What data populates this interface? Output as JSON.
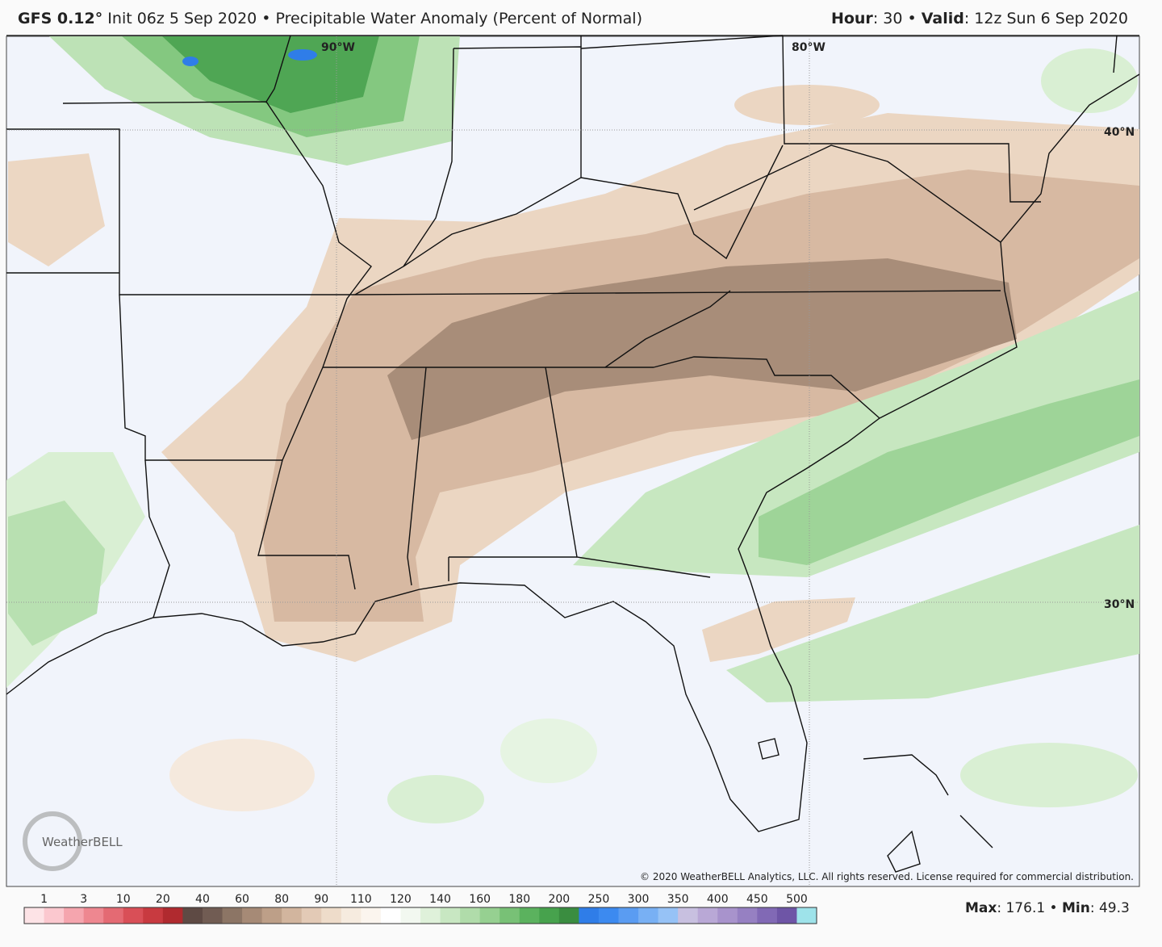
{
  "header": {
    "left": [
      {
        "text": "GFS 0.12°",
        "bold": true
      },
      {
        "text": " Init 06z 5 Sep 2020 • Precipitable Water Anomaly (Percent of Normal)",
        "bold": false
      }
    ],
    "right": [
      {
        "text": "Hour",
        "bold": true
      },
      {
        "text": ": 30 • ",
        "bold": false
      },
      {
        "text": "Valid",
        "bold": true
      },
      {
        "text": ": 12z Sun 6 Sep 2020",
        "bold": false
      }
    ]
  },
  "map": {
    "grid_labels": [
      "90°W",
      "80°W",
      "40°N",
      "30°N"
    ],
    "copyright": "© 2020 WeatherBELL Analytics, LLC. All rights reserved. License required for commercial distribution.",
    "logo": "WeatherBELL"
  },
  "colorbar": {
    "labels": [
      1,
      3,
      10,
      20,
      40,
      60,
      80,
      90,
      110,
      120,
      140,
      160,
      180,
      200,
      250,
      300,
      350,
      400,
      450,
      500
    ],
    "colors": [
      "#fde3e6",
      "#fbc8cf",
      "#f5a5ae",
      "#ee8790",
      "#e46a73",
      "#d94f57",
      "#c83a40",
      "#b02a2f",
      "#5e4a44",
      "#715c53",
      "#8c7565",
      "#a68a76",
      "#bd9f88",
      "#d2b59e",
      "#e3cab6",
      "#eedcca",
      "#f6ebdf",
      "#fbf5ee",
      "#ffffff",
      "#f2f8f0",
      "#dff1da",
      "#c8e7c2",
      "#b0dcaa",
      "#96d091",
      "#78c176",
      "#5bb25e",
      "#47a24d",
      "#3a8d40",
      "#2f7de8",
      "#3c8af0",
      "#5a9cf2",
      "#78b0f4",
      "#96c2f6",
      "#c8c0e0",
      "#b9a8d6",
      "#a893cc",
      "#9680c2",
      "#8169b5",
      "#6e55a6",
      "#9ee3ea"
    ],
    "stats": [
      {
        "text": "Max",
        "bold": true
      },
      {
        "text": ": 176.1 • ",
        "bold": false
      },
      {
        "text": "Min",
        "bold": true
      },
      {
        "text": ": 49.3",
        "bold": false
      }
    ]
  }
}
